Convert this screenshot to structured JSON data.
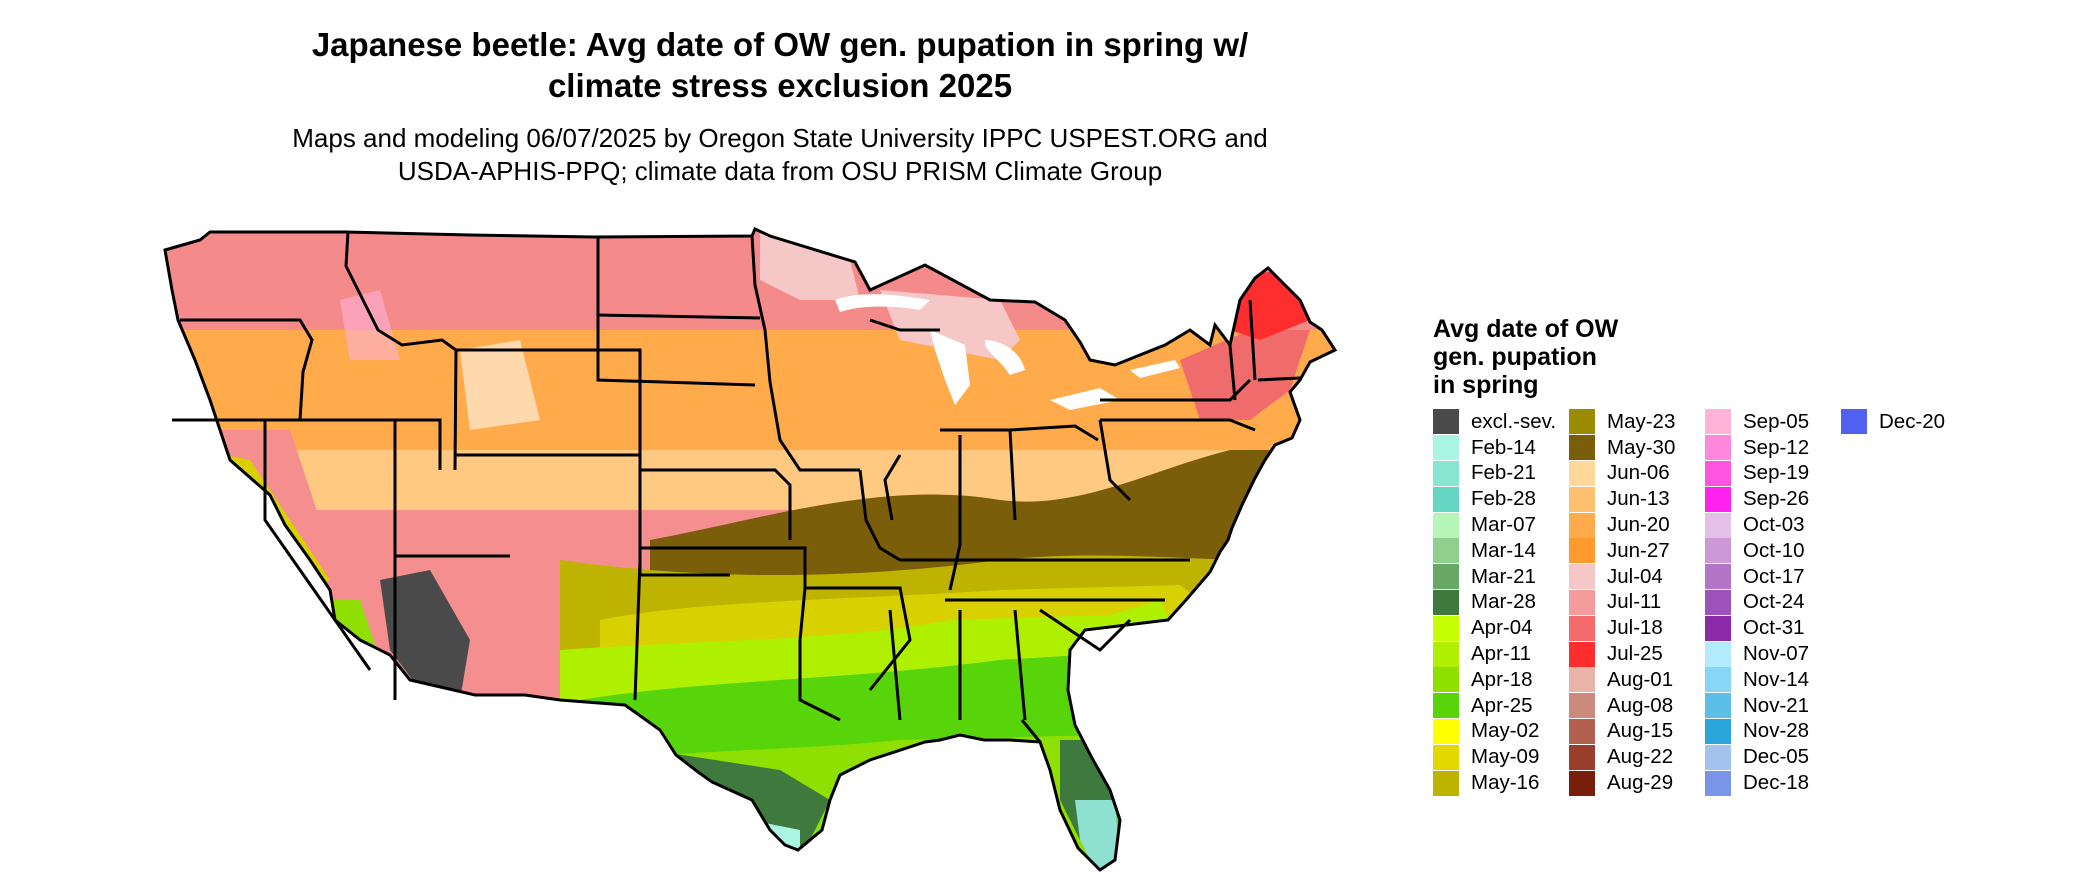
{
  "title": "Japanese beetle: Avg date of OW gen. pupation in spring w/\nclimate stress exclusion 2025",
  "subtitle": "Maps and modeling 06/07/2025 by Oregon State University IPPC USPEST.ORG and\nUSDA-APHIS-PPQ; climate data from OSU PRISM Climate Group",
  "legend": {
    "title": "Avg date of OW\ngen. pupation\nin spring",
    "columns": [
      [
        {
          "label": "excl.-sev.",
          "color": "#4a4a4a"
        },
        {
          "label": "Feb-14",
          "color": "#a9f5e2"
        },
        {
          "label": "Feb-21",
          "color": "#86e6d2"
        },
        {
          "label": "Feb-28",
          "color": "#66d6c4"
        },
        {
          "label": "Mar-07",
          "color": "#b6f5b8"
        },
        {
          "label": "Mar-14",
          "color": "#8fd08f"
        },
        {
          "label": "Mar-21",
          "color": "#67a867"
        },
        {
          "label": "Mar-28",
          "color": "#3e7a3e"
        },
        {
          "label": "Apr-04",
          "color": "#c6ff00"
        },
        {
          "label": "Apr-11",
          "color": "#aef000"
        },
        {
          "label": "Apr-18",
          "color": "#8fe000"
        },
        {
          "label": "Apr-25",
          "color": "#58d40a"
        },
        {
          "label": "May-02",
          "color": "#ffff00"
        },
        {
          "label": "May-09",
          "color": "#e2d800"
        },
        {
          "label": "May-16",
          "color": "#bdb300"
        }
      ],
      [
        {
          "label": "May-23",
          "color": "#9a8c00"
        },
        {
          "label": "May-30",
          "color": "#7a5e0a"
        },
        {
          "label": "Jun-06",
          "color": "#ffd89a"
        },
        {
          "label": "Jun-13",
          "color": "#ffc070"
        },
        {
          "label": "Jun-20",
          "color": "#ffab4c"
        },
        {
          "label": "Jun-27",
          "color": "#ff9a2c"
        },
        {
          "label": "Jul-04",
          "color": "#f5c7c7"
        },
        {
          "label": "Jul-11",
          "color": "#f59b9b"
        },
        {
          "label": "Jul-18",
          "color": "#f56b6b"
        },
        {
          "label": "Jul-25",
          "color": "#ff2e2e"
        },
        {
          "label": "Aug-01",
          "color": "#e8b4a8"
        },
        {
          "label": "Aug-08",
          "color": "#cc8a7c"
        },
        {
          "label": "Aug-15",
          "color": "#b26050"
        },
        {
          "label": "Aug-22",
          "color": "#9a3e2c"
        },
        {
          "label": "Aug-29",
          "color": "#7a1e0c"
        }
      ],
      [
        {
          "label": "Sep-05",
          "color": "#ffb3d9"
        },
        {
          "label": "Sep-12",
          "color": "#ff88dd"
        },
        {
          "label": "Sep-19",
          "color": "#ff55e0"
        },
        {
          "label": "Sep-26",
          "color": "#ff22ee"
        },
        {
          "label": "Oct-03",
          "color": "#e4c0e8"
        },
        {
          "label": "Oct-10",
          "color": "#cc99d6"
        },
        {
          "label": "Oct-17",
          "color": "#b275c8"
        },
        {
          "label": "Oct-24",
          "color": "#9c52ba"
        },
        {
          "label": "Oct-31",
          "color": "#8b2aa8"
        },
        {
          "label": "Nov-07",
          "color": "#b3ecff"
        },
        {
          "label": "Nov-14",
          "color": "#88d6f5"
        },
        {
          "label": "Nov-21",
          "color": "#5cbfe8"
        },
        {
          "label": "Nov-28",
          "color": "#2aa6dc"
        },
        {
          "label": "Dec-05",
          "color": "#a4c2ee"
        },
        {
          "label": "Dec-18",
          "color": "#7895e8"
        }
      ],
      [
        {
          "label": "Dec-20",
          "color": "#5060f0"
        }
      ]
    ]
  }
}
